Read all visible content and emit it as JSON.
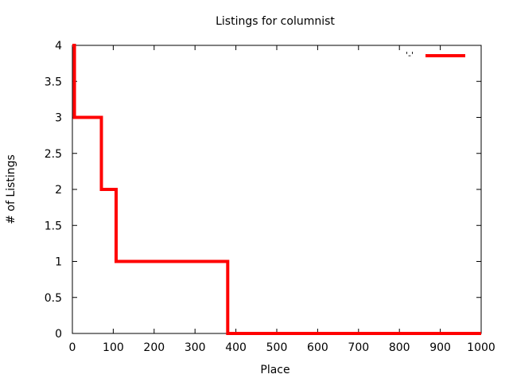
{
  "chart_data": {
    "type": "line",
    "title": "Listings for columnist",
    "xlabel": "Place",
    "ylabel": "# of Listings",
    "xlim": [
      0,
      1000
    ],
    "ylim": [
      0,
      4
    ],
    "x_ticks": [
      0,
      100,
      200,
      300,
      400,
      500,
      600,
      700,
      800,
      900,
      1000
    ],
    "y_ticks": [
      0,
      0.5,
      1,
      1.5,
      2,
      2.5,
      3,
      3.5,
      4
    ],
    "x_tick_labels": [
      "0",
      "100",
      "200",
      "300",
      "400",
      "500",
      "600",
      "700",
      "800",
      "900",
      "1000"
    ],
    "y_tick_labels": [
      "0",
      "0.5",
      "1",
      "1.5",
      "2",
      "2.5",
      "3",
      "3.5",
      "4"
    ],
    "grid": false,
    "legend": {
      "placement": "top-right",
      "entries": [
        {
          "label": "'-'",
          "color": "#ff0000"
        }
      ]
    },
    "series": [
      {
        "color": "#ff0000",
        "x": [
          0,
          5,
          5,
          71,
          71,
          107,
          107,
          380,
          380,
          1000
        ],
        "y": [
          4,
          4,
          3,
          3,
          2,
          2,
          1,
          1,
          0,
          0
        ]
      }
    ]
  }
}
